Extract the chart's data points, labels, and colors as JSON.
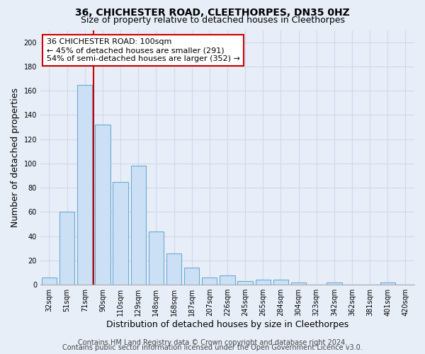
{
  "title": "36, CHICHESTER ROAD, CLEETHORPES, DN35 0HZ",
  "subtitle": "Size of property relative to detached houses in Cleethorpes",
  "xlabel": "Distribution of detached houses by size in Cleethorpes",
  "ylabel": "Number of detached properties",
  "categories": [
    "32sqm",
    "51sqm",
    "71sqm",
    "90sqm",
    "110sqm",
    "129sqm",
    "148sqm",
    "168sqm",
    "187sqm",
    "207sqm",
    "226sqm",
    "245sqm",
    "265sqm",
    "284sqm",
    "304sqm",
    "323sqm",
    "342sqm",
    "362sqm",
    "381sqm",
    "401sqm",
    "420sqm"
  ],
  "values": [
    6,
    60,
    165,
    132,
    85,
    98,
    44,
    26,
    14,
    6,
    8,
    3,
    4,
    4,
    2,
    0,
    2,
    0,
    0,
    2,
    0
  ],
  "bar_color": "#cce0f5",
  "bar_edge_color": "#6aaad4",
  "vline_x": 2.5,
  "vline_color": "#cc0000",
  "annotation_line1": "36 CHICHESTER ROAD: 100sqm",
  "annotation_line2": "← 45% of detached houses are smaller (291)",
  "annotation_line3": "54% of semi-detached houses are larger (352) →",
  "annotation_box_color": "#ffffff",
  "annotation_box_edge": "#cc0000",
  "ylim": [
    0,
    210
  ],
  "yticks": [
    0,
    20,
    40,
    60,
    80,
    100,
    120,
    140,
    160,
    180,
    200
  ],
  "footer1": "Contains HM Land Registry data © Crown copyright and database right 2024.",
  "footer2": "Contains public sector information licensed under the Open Government Licence v3.0.",
  "background_color": "#e8eef8",
  "grid_color": "#d0d8e8",
  "title_fontsize": 10,
  "subtitle_fontsize": 9,
  "axis_label_fontsize": 9,
  "tick_fontsize": 7,
  "annotation_fontsize": 8,
  "footer_fontsize": 7
}
